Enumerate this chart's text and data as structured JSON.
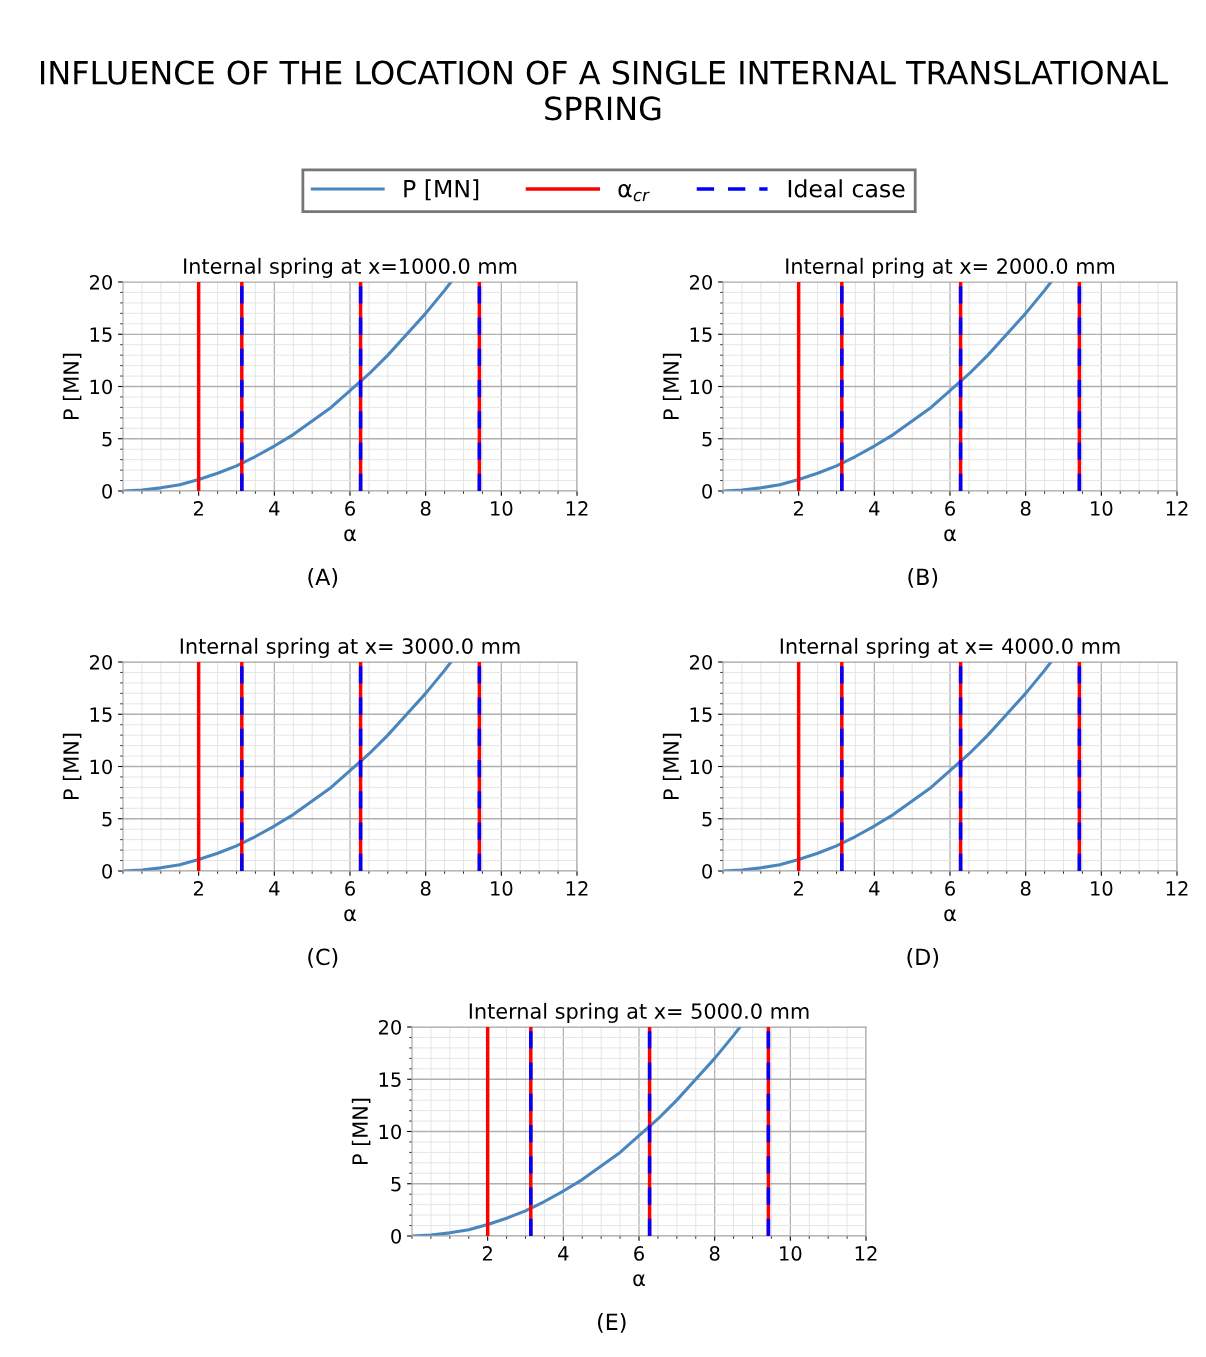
{
  "chart_data": [
    {
      "type": "line",
      "title": "Internal spring at x=1000.0 mm",
      "xlabel": "α",
      "ylabel": "P [MN]",
      "annotations": [
        "INFLUENCE OF THE LOCATION OF A SINGLE INTERNAL TRANSLATIONAL SPRING",
        "(A)"
      ],
      "legend": "top",
      "grid": true,
      "xlim": [
        0,
        12
      ],
      "xticks": [
        2,
        4,
        6,
        8,
        10,
        12
      ],
      "ylim": [
        0,
        20
      ],
      "yticks": [
        0,
        5,
        10,
        15,
        20
      ],
      "series": [
        {
          "name": "P [MN]",
          "color": "#4a86be",
          "x": [
            0,
            0.5,
            1,
            1.5,
            2,
            2.5,
            3,
            3.5,
            4,
            4.5,
            5,
            5.5,
            6,
            6.5,
            7,
            7.5,
            8,
            8.5,
            8.67
          ],
          "values": [
            0,
            0.1,
            0.3,
            0.6,
            1.1,
            1.7,
            2.4,
            3.3,
            4.3,
            5.4,
            6.7,
            8.0,
            9.6,
            11.2,
            13.0,
            15.0,
            17.0,
            19.2,
            20
          ]
        }
      ],
      "ref_lines": [
        {
          "axis": "x",
          "value": 2.0,
          "label": "α$_{cr}$",
          "color": "#ff0000",
          "line_style": "solid"
        },
        {
          "axis": "x",
          "value": 3.14,
          "color": "#ff0000",
          "line_style": "solid"
        },
        {
          "axis": "x",
          "value": 6.28,
          "color": "#ff0000",
          "line_style": "solid"
        },
        {
          "axis": "x",
          "value": 9.42,
          "color": "#ff0000",
          "line_style": "solid"
        },
        {
          "axis": "x",
          "value": 3.14,
          "label": "Ideal case",
          "color": "#0000ff",
          "line_style": "dashed"
        },
        {
          "axis": "x",
          "value": 6.28,
          "color": "#0000ff",
          "line_style": "dashed"
        },
        {
          "axis": "x",
          "value": 9.42,
          "color": "#0000ff",
          "line_style": "dashed"
        }
      ]
    },
    {
      "type": "line",
      "title": "Internal pring at x= 2000.0 mm",
      "xlabel": "α",
      "ylabel": "P [MN]",
      "annotations": [
        "(B)"
      ],
      "grid": true,
      "xlim": [
        0,
        12
      ],
      "xticks": [
        2,
        4,
        6,
        8,
        10,
        12
      ],
      "ylim": [
        0,
        20
      ],
      "yticks": [
        0,
        5,
        10,
        15,
        20
      ],
      "series": [
        {
          "color": "#4a86be",
          "x": [
            0,
            0.5,
            1,
            1.5,
            2,
            2.5,
            3,
            3.5,
            4,
            4.5,
            5,
            5.5,
            6,
            6.5,
            7,
            7.5,
            8,
            8.5,
            8.67
          ],
          "values": [
            0,
            0.1,
            0.3,
            0.6,
            1.1,
            1.7,
            2.4,
            3.3,
            4.3,
            5.4,
            6.7,
            8.0,
            9.6,
            11.2,
            13.0,
            15.0,
            17.0,
            19.2,
            20
          ]
        }
      ],
      "ref_lines": [
        {
          "axis": "x",
          "value": 2.0,
          "color": "#ff0000",
          "line_style": "solid"
        },
        {
          "axis": "x",
          "value": 3.14,
          "color": "#ff0000",
          "line_style": "solid"
        },
        {
          "axis": "x",
          "value": 6.28,
          "color": "#ff0000",
          "line_style": "solid"
        },
        {
          "axis": "x",
          "value": 9.42,
          "color": "#ff0000",
          "line_style": "solid"
        },
        {
          "axis": "x",
          "value": 3.14,
          "color": "#0000ff",
          "line_style": "dashed"
        },
        {
          "axis": "x",
          "value": 6.28,
          "color": "#0000ff",
          "line_style": "dashed"
        },
        {
          "axis": "x",
          "value": 9.42,
          "color": "#0000ff",
          "line_style": "dashed"
        }
      ]
    },
    {
      "type": "line",
      "title": "Internal spring at x= 3000.0 mm",
      "xlabel": "α",
      "ylabel": "P [MN]",
      "annotations": [
        "(C)"
      ],
      "grid": true,
      "xlim": [
        0,
        12
      ],
      "xticks": [
        2,
        4,
        6,
        8,
        10,
        12
      ],
      "ylim": [
        0,
        20
      ],
      "yticks": [
        0,
        5,
        10,
        15,
        20
      ],
      "series": [
        {
          "color": "#4a86be",
          "x": [
            0,
            0.5,
            1,
            1.5,
            2,
            2.5,
            3,
            3.5,
            4,
            4.5,
            5,
            5.5,
            6,
            6.5,
            7,
            7.5,
            8,
            8.5,
            8.67
          ],
          "values": [
            0,
            0.1,
            0.3,
            0.6,
            1.1,
            1.7,
            2.4,
            3.3,
            4.3,
            5.4,
            6.7,
            8.0,
            9.6,
            11.2,
            13.0,
            15.0,
            17.0,
            19.2,
            20
          ]
        }
      ],
      "ref_lines": [
        {
          "axis": "x",
          "value": 2.0,
          "color": "#ff0000",
          "line_style": "solid"
        },
        {
          "axis": "x",
          "value": 3.14,
          "color": "#ff0000",
          "line_style": "solid"
        },
        {
          "axis": "x",
          "value": 6.28,
          "color": "#ff0000",
          "line_style": "solid"
        },
        {
          "axis": "x",
          "value": 9.42,
          "color": "#ff0000",
          "line_style": "solid"
        },
        {
          "axis": "x",
          "value": 3.14,
          "color": "#0000ff",
          "line_style": "dashed"
        },
        {
          "axis": "x",
          "value": 6.28,
          "color": "#0000ff",
          "line_style": "dashed"
        },
        {
          "axis": "x",
          "value": 9.42,
          "color": "#0000ff",
          "line_style": "dashed"
        }
      ]
    },
    {
      "type": "line",
      "title": "Internal spring at x= 4000.0 mm",
      "xlabel": "α",
      "ylabel": "P [MN]",
      "annotations": [
        "(D)"
      ],
      "grid": true,
      "xlim": [
        0,
        12
      ],
      "xticks": [
        2,
        4,
        6,
        8,
        10,
        12
      ],
      "ylim": [
        0,
        20
      ],
      "yticks": [
        0,
        5,
        10,
        15,
        20
      ],
      "series": [
        {
          "color": "#4a86be",
          "x": [
            0,
            0.5,
            1,
            1.5,
            2,
            2.5,
            3,
            3.5,
            4,
            4.5,
            5,
            5.5,
            6,
            6.5,
            7,
            7.5,
            8,
            8.5,
            8.67
          ],
          "values": [
            0,
            0.1,
            0.3,
            0.6,
            1.1,
            1.7,
            2.4,
            3.3,
            4.3,
            5.4,
            6.7,
            8.0,
            9.6,
            11.2,
            13.0,
            15.0,
            17.0,
            19.2,
            20
          ]
        }
      ],
      "ref_lines": [
        {
          "axis": "x",
          "value": 2.0,
          "color": "#ff0000",
          "line_style": "solid"
        },
        {
          "axis": "x",
          "value": 3.14,
          "color": "#ff0000",
          "line_style": "solid"
        },
        {
          "axis": "x",
          "value": 6.28,
          "color": "#ff0000",
          "line_style": "solid"
        },
        {
          "axis": "x",
          "value": 9.42,
          "color": "#ff0000",
          "line_style": "solid"
        },
        {
          "axis": "x",
          "value": 3.14,
          "color": "#0000ff",
          "line_style": "dashed"
        },
        {
          "axis": "x",
          "value": 6.28,
          "color": "#0000ff",
          "line_style": "dashed"
        },
        {
          "axis": "x",
          "value": 9.42,
          "color": "#0000ff",
          "line_style": "dashed"
        }
      ]
    },
    {
      "type": "line",
      "title": "Internal spring at x= 5000.0 mm",
      "xlabel": "α",
      "ylabel": "P [MN]",
      "annotations": [
        "(E)"
      ],
      "grid": true,
      "xlim": [
        0,
        12
      ],
      "xticks": [
        2,
        4,
        6,
        8,
        10,
        12
      ],
      "ylim": [
        0,
        20
      ],
      "yticks": [
        0,
        5,
        10,
        15,
        20
      ],
      "series": [
        {
          "color": "#4a86be",
          "x": [
            0,
            0.5,
            1,
            1.5,
            2,
            2.5,
            3,
            3.5,
            4,
            4.5,
            5,
            5.5,
            6,
            6.5,
            7,
            7.5,
            8,
            8.5,
            8.67
          ],
          "values": [
            0,
            0.1,
            0.3,
            0.6,
            1.1,
            1.7,
            2.4,
            3.3,
            4.3,
            5.4,
            6.7,
            8.0,
            9.6,
            11.2,
            13.0,
            15.0,
            17.0,
            19.2,
            20
          ]
        }
      ],
      "ref_lines": [
        {
          "axis": "x",
          "value": 2.0,
          "color": "#ff0000",
          "line_style": "solid"
        },
        {
          "axis": "x",
          "value": 3.14,
          "color": "#ff0000",
          "line_style": "solid"
        },
        {
          "axis": "x",
          "value": 6.28,
          "color": "#ff0000",
          "line_style": "solid"
        },
        {
          "axis": "x",
          "value": 9.42,
          "color": "#ff0000",
          "line_style": "solid"
        },
        {
          "axis": "x",
          "value": 3.14,
          "color": "#0000ff",
          "line_style": "dashed"
        },
        {
          "axis": "x",
          "value": 6.28,
          "color": "#0000ff",
          "line_style": "dashed"
        },
        {
          "axis": "x",
          "value": 9.42,
          "color": "#0000ff",
          "line_style": "dashed"
        }
      ]
    }
  ]
}
